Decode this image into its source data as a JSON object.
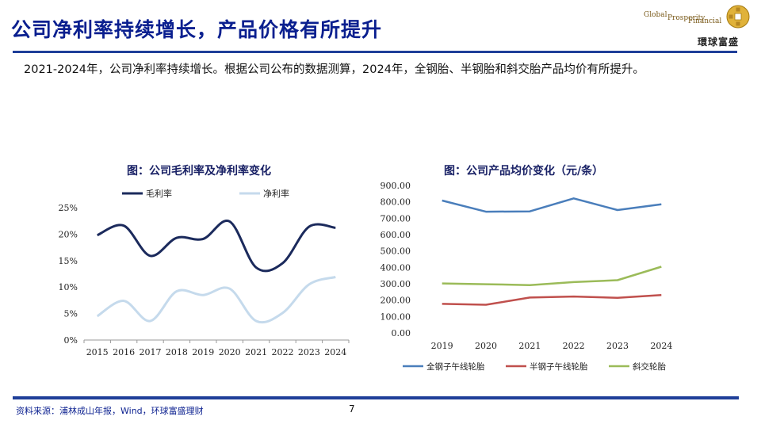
{
  "header": {
    "title": "公司净利率持续增长，产品价格有所提升",
    "logo": {
      "en_words": [
        "Global",
        "Prosperity",
        "Financial"
      ],
      "cn": "環球富盛",
      "coin_chars": "道生財"
    }
  },
  "intro": "2021-2024年，公司净利率持续增长。根据公司公布的数据测算，2024年，全钢胎、半钢胎和斜交胎产品均价有所提升。",
  "footer": {
    "source": "资料来源：浦林成山年报，Wind，环球富盛理财",
    "page_number": "7"
  },
  "chart_data": [
    {
      "type": "line",
      "title": "图：公司毛利率及净利率变化",
      "categories": [
        "2015",
        "2016",
        "2017",
        "2018",
        "2019",
        "2020",
        "2021",
        "2022",
        "2023",
        "2024"
      ],
      "series": [
        {
          "name": "毛利率",
          "color": "#1b2a5c",
          "values": [
            19.8,
            21.6,
            15.9,
            19.3,
            19.1,
            22.4,
            13.7,
            14.5,
            21.4,
            21.2
          ]
        },
        {
          "name": "净利率",
          "color": "#c5daec",
          "values": [
            4.5,
            7.4,
            3.6,
            9.2,
            8.5,
            9.7,
            3.6,
            5.1,
            10.5,
            11.9
          ]
        }
      ],
      "yticks": [
        "0%",
        "5%",
        "10%",
        "15%",
        "20%",
        "25%"
      ],
      "ylim": [
        0,
        25
      ],
      "legend": "top",
      "grid": false
    },
    {
      "type": "line",
      "title": "图：公司产品均价变化（元/条）",
      "categories": [
        "2019",
        "2020",
        "2021",
        "2022",
        "2023",
        "2024"
      ],
      "series": [
        {
          "name": "全钢子午线轮胎",
          "color": "#4a7ebb",
          "values": [
            808,
            740,
            742,
            821,
            750,
            785
          ]
        },
        {
          "name": "半钢子午线轮胎",
          "color": "#c0504d",
          "values": [
            177,
            172,
            216,
            222,
            214,
            231
          ]
        },
        {
          "name": "斜交轮胎",
          "color": "#9bbb59",
          "values": [
            302,
            297,
            292,
            310,
            322,
            404
          ]
        }
      ],
      "yticks": [
        "0.00",
        "100.00",
        "200.00",
        "300.00",
        "400.00",
        "500.00",
        "600.00",
        "700.00",
        "800.00",
        "900.00"
      ],
      "ylim": [
        0,
        900
      ],
      "legend": "bottom",
      "grid": false
    }
  ]
}
